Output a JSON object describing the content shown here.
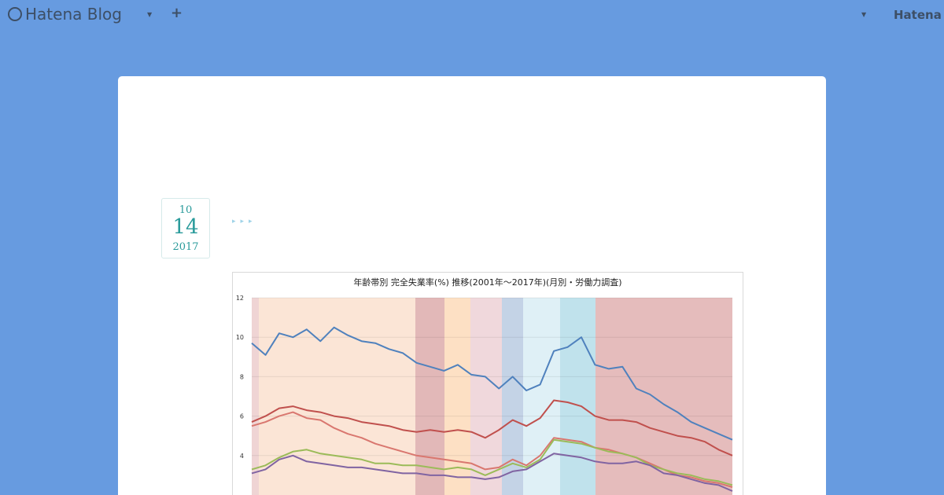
{
  "header": {
    "logo": "Hatena Blog",
    "brand": "Hatena"
  },
  "entry": {
    "month": "10",
    "day": "14",
    "year": "2017"
  },
  "chart_data": {
    "type": "line",
    "title": "年齢帯別 完全失業率(%) 推移(2001年～2017年)(月別・労働力調査)",
    "ylim": [
      2,
      12
    ],
    "yticks": [
      4,
      6,
      8,
      10,
      12
    ],
    "grid": true,
    "series": [
      {
        "color": "#4f81bd",
        "values": [
          9.7,
          9.1,
          10.2,
          10.0,
          10.4,
          9.8,
          10.5,
          10.1,
          9.8,
          9.7,
          9.4,
          9.2,
          8.7,
          8.5,
          8.3,
          8.6,
          8.1,
          8.0,
          7.4,
          8.0,
          7.3,
          7.6,
          9.3,
          9.5,
          10.0,
          8.6,
          8.4,
          8.5,
          7.4,
          7.1,
          6.6,
          6.2,
          5.7,
          5.4,
          5.1,
          4.8
        ]
      },
      {
        "color": "#c0504d",
        "values": [
          5.7,
          6.0,
          6.4,
          6.5,
          6.3,
          6.2,
          6.0,
          5.9,
          5.7,
          5.6,
          5.5,
          5.3,
          5.2,
          5.3,
          5.2,
          5.3,
          5.2,
          4.9,
          5.3,
          5.8,
          5.5,
          5.9,
          6.8,
          6.7,
          6.5,
          6.0,
          5.8,
          5.8,
          5.7,
          5.4,
          5.2,
          5.0,
          4.9,
          4.7,
          4.3,
          4.0
        ]
      },
      {
        "color": "#d9776f",
        "values": [
          5.5,
          5.7,
          6.0,
          6.2,
          5.9,
          5.8,
          5.4,
          5.1,
          4.9,
          4.6,
          4.4,
          4.2,
          4.0,
          3.9,
          3.8,
          3.7,
          3.6,
          3.3,
          3.4,
          3.8,
          3.5,
          4.0,
          4.9,
          4.8,
          4.7,
          4.4,
          4.3,
          4.1,
          3.9,
          3.6,
          3.3,
          3.0,
          2.9,
          2.7,
          2.6,
          2.4
        ]
      },
      {
        "color": "#9bbb59",
        "values": [
          3.3,
          3.5,
          3.9,
          4.2,
          4.3,
          4.1,
          4.0,
          3.9,
          3.8,
          3.6,
          3.6,
          3.5,
          3.5,
          3.4,
          3.3,
          3.4,
          3.3,
          3.0,
          3.3,
          3.6,
          3.4,
          3.8,
          4.8,
          4.7,
          4.6,
          4.4,
          4.2,
          4.1,
          3.9,
          3.5,
          3.3,
          3.1,
          3.0,
          2.8,
          2.7,
          2.5
        ]
      },
      {
        "color": "#8064a2",
        "values": [
          3.1,
          3.3,
          3.8,
          4.0,
          3.7,
          3.6,
          3.5,
          3.4,
          3.4,
          3.3,
          3.2,
          3.1,
          3.1,
          3.0,
          3.0,
          2.9,
          2.9,
          2.8,
          2.9,
          3.2,
          3.3,
          3.7,
          4.1,
          4.0,
          3.9,
          3.7,
          3.6,
          3.6,
          3.7,
          3.5,
          3.1,
          3.0,
          2.8,
          2.6,
          2.5,
          2.2
        ]
      }
    ]
  }
}
